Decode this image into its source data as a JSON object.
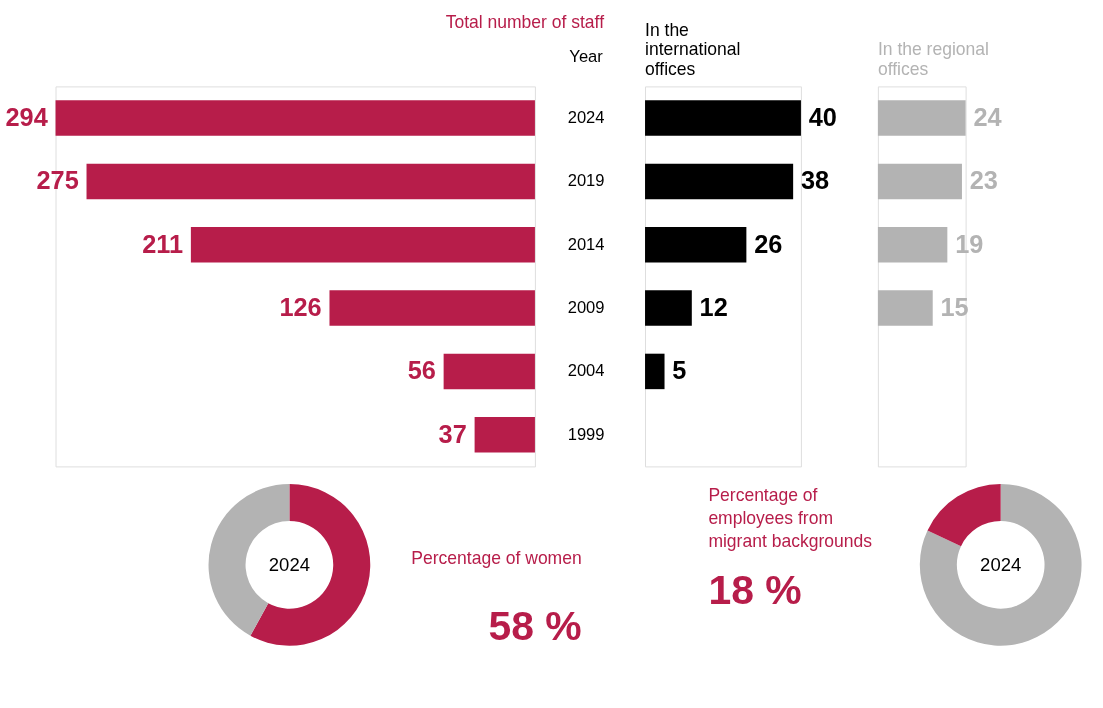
{
  "chart_data": [
    {
      "type": "bar",
      "orientation": "horizontal",
      "title": "Total number of staff",
      "ylabel": "Year",
      "categories": [
        "2024",
        "2019",
        "2014",
        "2009",
        "2004",
        "1999"
      ],
      "values": [
        294,
        275,
        211,
        126,
        56,
        37
      ],
      "color": "#b71d4a",
      "data_labels": true
    },
    {
      "type": "bar",
      "orientation": "horizontal",
      "title": "In the international offices",
      "categories": [
        null,
        null,
        null,
        null,
        null,
        null
      ],
      "values": [
        40,
        38,
        26,
        12,
        5,
        null
      ],
      "color": "#000000",
      "data_labels": true,
      "tick_labels": false
    },
    {
      "type": "bar",
      "orientation": "horizontal",
      "title": "In the regional offices",
      "categories": [
        null,
        null,
        null,
        null,
        null,
        null
      ],
      "values": [
        24,
        23,
        19,
        15,
        null,
        null
      ],
      "color": "#b3b3b3",
      "data_labels": true,
      "tick_labels": false
    },
    {
      "type": "donut",
      "title": "2024",
      "categories": [
        null,
        null
      ],
      "values": [
        58,
        42
      ],
      "colors": [
        "#b71d4a",
        "#b3b3b3"
      ],
      "annotations": [
        "Percentage of women",
        "58 %"
      ]
    },
    {
      "type": "donut",
      "title": "2024",
      "categories": [
        null,
        null
      ],
      "values": [
        82,
        18
      ],
      "colors": [
        "#b3b3b3",
        "#b71d4a"
      ],
      "annotations": [
        "Percentage of employees from migrant backgrounds",
        "18 %"
      ]
    }
  ]
}
